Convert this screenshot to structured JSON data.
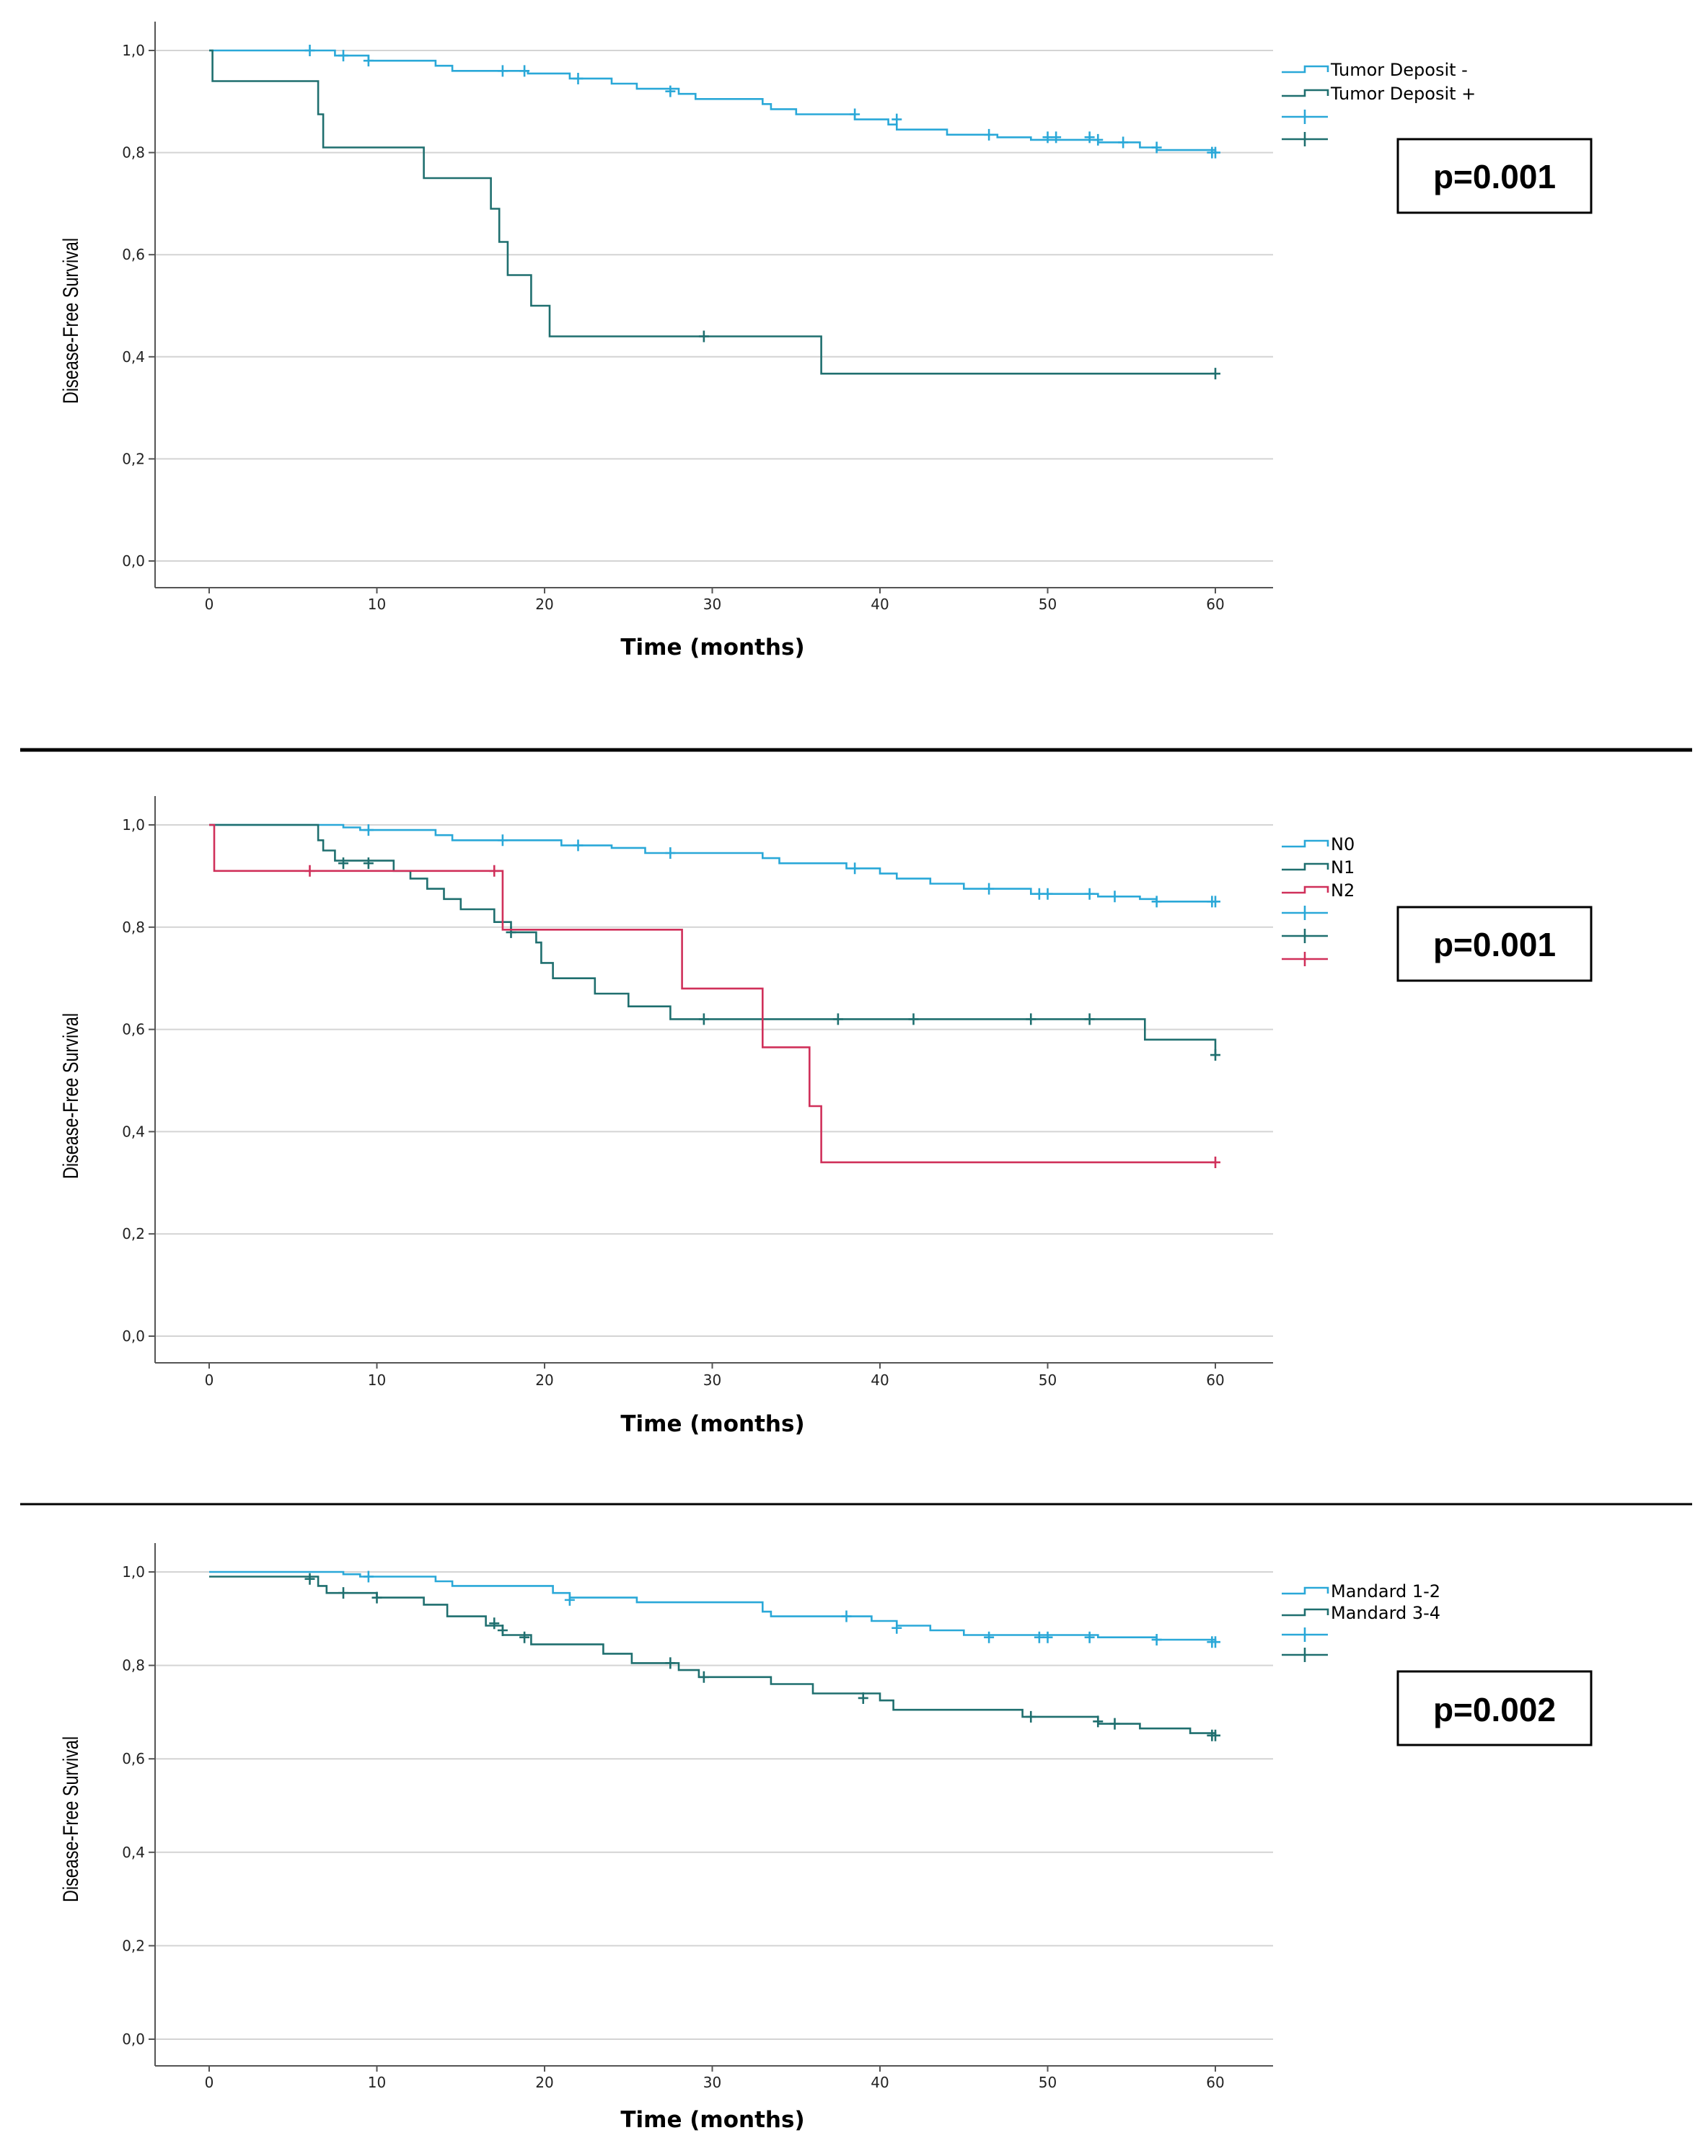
{
  "chart_data": [
    {
      "type": "line",
      "step": true,
      "title": "",
      "xlabel": "Time (months)",
      "ylabel": "Disease-Free Survival",
      "xlim": [
        0,
        60
      ],
      "ylim": [
        0,
        1
      ],
      "xticks": [
        "0",
        "10",
        "20",
        "30",
        "40",
        "50",
        "60"
      ],
      "yticks": [
        "0,0",
        "0,2",
        "0,4",
        "0,6",
        "0,8",
        "1,0"
      ],
      "grid": "horizontal",
      "annotation": "p=0.001",
      "legend": [
        "Tumor Deposit -",
        "Tumor Deposit +"
      ],
      "series": [
        {
          "name": "Tumor Deposit -",
          "color": "#2aa8d8",
          "points": [
            [
              0,
              1
            ],
            [
              6,
              1
            ],
            [
              7.5,
              0.99
            ],
            [
              9.5,
              0.98
            ],
            [
              13.5,
              0.97
            ],
            [
              14.5,
              0.96
            ],
            [
              19,
              0.955
            ],
            [
              21.5,
              0.945
            ],
            [
              24,
              0.935
            ],
            [
              25.5,
              0.925
            ],
            [
              28,
              0.915
            ],
            [
              29,
              0.905
            ],
            [
              33,
              0.895
            ],
            [
              33.5,
              0.885
            ],
            [
              35,
              0.875
            ],
            [
              38.5,
              0.865
            ],
            [
              40.5,
              0.855
            ],
            [
              41,
              0.845
            ],
            [
              44,
              0.835
            ],
            [
              47,
              0.83
            ],
            [
              49,
              0.825
            ],
            [
              53,
              0.82
            ],
            [
              55.5,
              0.81
            ],
            [
              56.5,
              0.805
            ],
            [
              60,
              0.8
            ]
          ],
          "censor": [
            [
              6,
              1
            ],
            [
              8,
              0.99
            ],
            [
              9.5,
              0.98
            ],
            [
              17.5,
              0.96
            ],
            [
              18.8,
              0.96
            ],
            [
              22,
              0.945
            ],
            [
              27.5,
              0.92
            ],
            [
              38.5,
              0.875
            ],
            [
              41,
              0.865
            ],
            [
              46.5,
              0.835
            ],
            [
              50,
              0.83
            ],
            [
              50.5,
              0.83
            ],
            [
              52.5,
              0.83
            ],
            [
              53,
              0.825
            ],
            [
              54.5,
              0.82
            ],
            [
              56.5,
              0.81
            ],
            [
              59.8,
              0.8
            ],
            [
              60,
              0.8
            ]
          ]
        },
        {
          "name": "Tumor Deposit +",
          "color": "#1f6f6f",
          "points": [
            [
              0,
              1
            ],
            [
              0.2,
              0.94
            ],
            [
              6.5,
              0.94
            ],
            [
              6.5,
              0.875
            ],
            [
              6.8,
              0.875
            ],
            [
              6.8,
              0.81
            ],
            [
              12.8,
              0.81
            ],
            [
              12.8,
              0.75
            ],
            [
              16.8,
              0.75
            ],
            [
              16.8,
              0.69
            ],
            [
              17.3,
              0.69
            ],
            [
              17.3,
              0.625
            ],
            [
              17.8,
              0.625
            ],
            [
              17.8,
              0.56
            ],
            [
              19.2,
              0.56
            ],
            [
              19.2,
              0.5
            ],
            [
              20.3,
              0.5
            ],
            [
              20.3,
              0.44
            ],
            [
              36.5,
              0.44
            ],
            [
              36.5,
              0.367
            ],
            [
              60,
              0.367
            ]
          ],
          "censor": [
            [
              29.5,
              0.44
            ],
            [
              60,
              0.367
            ]
          ]
        }
      ]
    },
    {
      "type": "line",
      "step": true,
      "title": "",
      "xlabel": "Time (months)",
      "ylabel": "Disease-Free Survival",
      "xlim": [
        0,
        60
      ],
      "ylim": [
        0,
        1
      ],
      "xticks": [
        "0",
        "10",
        "20",
        "30",
        "40",
        "50",
        "60"
      ],
      "yticks": [
        "0,0",
        "0,2",
        "0,4",
        "0,6",
        "0,8",
        "1,0"
      ],
      "grid": "horizontal",
      "annotation": "p=0.001",
      "legend": [
        "N0",
        "N1",
        "N2"
      ],
      "series": [
        {
          "name": "N0",
          "color": "#2aa8d8",
          "points": [
            [
              0,
              1
            ],
            [
              8,
              0.995
            ],
            [
              9,
              0.99
            ],
            [
              13.5,
              0.98
            ],
            [
              14.5,
              0.97
            ],
            [
              21,
              0.96
            ],
            [
              24,
              0.955
            ],
            [
              26,
              0.945
            ],
            [
              33,
              0.935
            ],
            [
              34,
              0.925
            ],
            [
              38,
              0.915
            ],
            [
              40,
              0.905
            ],
            [
              41,
              0.895
            ],
            [
              43,
              0.885
            ],
            [
              45,
              0.875
            ],
            [
              49,
              0.865
            ],
            [
              53,
              0.86
            ],
            [
              55.5,
              0.855
            ],
            [
              56.5,
              0.85
            ],
            [
              60,
              0.85
            ]
          ],
          "censor": [
            [
              9.5,
              0.99
            ],
            [
              17.5,
              0.97
            ],
            [
              22,
              0.96
            ],
            [
              27.5,
              0.945
            ],
            [
              38.5,
              0.915
            ],
            [
              46.5,
              0.875
            ],
            [
              49.5,
              0.865
            ],
            [
              50,
              0.865
            ],
            [
              52.5,
              0.865
            ],
            [
              54,
              0.86
            ],
            [
              56.5,
              0.85
            ],
            [
              59.8,
              0.85
            ],
            [
              60,
              0.85
            ]
          ]
        },
        {
          "name": "N1",
          "color": "#1f6f6f",
          "points": [
            [
              0,
              1
            ],
            [
              6.5,
              0.97
            ],
            [
              6.8,
              0.95
            ],
            [
              7.5,
              0.93
            ],
            [
              11,
              0.91
            ],
            [
              12,
              0.895
            ],
            [
              13,
              0.875
            ],
            [
              14,
              0.855
            ],
            [
              15,
              0.835
            ],
            [
              17,
              0.81
            ],
            [
              18,
              0.79
            ],
            [
              19.5,
              0.77
            ],
            [
              19.8,
              0.73
            ],
            [
              20.5,
              0.7
            ],
            [
              23,
              0.67
            ],
            [
              25,
              0.645
            ],
            [
              27.5,
              0.62
            ],
            [
              55.8,
              0.62
            ],
            [
              55.8,
              0.58
            ],
            [
              60,
              0.55
            ]
          ],
          "censor": [
            [
              8,
              0.925
            ],
            [
              9.5,
              0.925
            ],
            [
              18,
              0.79
            ],
            [
              29.5,
              0.62
            ],
            [
              37.5,
              0.62
            ],
            [
              42,
              0.62
            ],
            [
              49,
              0.62
            ],
            [
              52.5,
              0.62
            ],
            [
              60,
              0.55
            ]
          ]
        },
        {
          "name": "N2",
          "color": "#d0305a",
          "points": [
            [
              0,
              1
            ],
            [
              0.3,
              0.91
            ],
            [
              17.5,
              0.91
            ],
            [
              17.5,
              0.795
            ],
            [
              28.2,
              0.795
            ],
            [
              28.2,
              0.68
            ],
            [
              33,
              0.68
            ],
            [
              33,
              0.565
            ],
            [
              35.8,
              0.565
            ],
            [
              35.8,
              0.45
            ],
            [
              36.5,
              0.45
            ],
            [
              36.5,
              0.34
            ],
            [
              60,
              0.34
            ]
          ],
          "censor": [
            [
              6,
              0.91
            ],
            [
              17,
              0.91
            ],
            [
              60,
              0.34
            ]
          ]
        }
      ]
    },
    {
      "type": "line",
      "step": true,
      "title": "",
      "xlabel": "Time (months)",
      "ylabel": "Disease-Free Survival",
      "xlim": [
        0,
        60
      ],
      "ylim": [
        0,
        1
      ],
      "xticks": [
        "0",
        "10",
        "20",
        "30",
        "40",
        "50",
        "60"
      ],
      "yticks": [
        "0,0",
        "0,2",
        "0,4",
        "0,6",
        "0,8",
        "1,0"
      ],
      "grid": "horizontal",
      "annotation": "p=0.002",
      "legend": [
        "Mandard 1-2",
        "Mandard 3-4"
      ],
      "series": [
        {
          "name": "Mandard 1-2",
          "color": "#2aa8d8",
          "points": [
            [
              0,
              1
            ],
            [
              8,
              0.995
            ],
            [
              9,
              0.99
            ],
            [
              13.5,
              0.98
            ],
            [
              14.5,
              0.97
            ],
            [
              20.5,
              0.955
            ],
            [
              21.5,
              0.945
            ],
            [
              25.5,
              0.935
            ],
            [
              33,
              0.915
            ],
            [
              33.5,
              0.905
            ],
            [
              39.5,
              0.895
            ],
            [
              41,
              0.885
            ],
            [
              43,
              0.875
            ],
            [
              45,
              0.865
            ],
            [
              53,
              0.86
            ],
            [
              56.5,
              0.855
            ],
            [
              60,
              0.85
            ]
          ],
          "censor": [
            [
              9.5,
              0.99
            ],
            [
              21.5,
              0.94
            ],
            [
              38,
              0.905
            ],
            [
              41,
              0.88
            ],
            [
              46.5,
              0.86
            ],
            [
              49.5,
              0.86
            ],
            [
              50,
              0.86
            ],
            [
              52.5,
              0.86
            ],
            [
              56.5,
              0.855
            ],
            [
              59.8,
              0.85
            ],
            [
              60,
              0.85
            ]
          ]
        },
        {
          "name": "Mandard 3-4",
          "color": "#1f6f6f",
          "points": [
            [
              0,
              0.99
            ],
            [
              5.8,
              0.99
            ],
            [
              6.5,
              0.97
            ],
            [
              7,
              0.955
            ],
            [
              10,
              0.945
            ],
            [
              12.8,
              0.93
            ],
            [
              14.2,
              0.905
            ],
            [
              16.5,
              0.885
            ],
            [
              17.5,
              0.865
            ],
            [
              19.2,
              0.845
            ],
            [
              23.5,
              0.825
            ],
            [
              25.2,
              0.805
            ],
            [
              28,
              0.79
            ],
            [
              29.2,
              0.775
            ],
            [
              33.5,
              0.76
            ],
            [
              36,
              0.74
            ],
            [
              40,
              0.725
            ],
            [
              40.8,
              0.705
            ],
            [
              48.5,
              0.69
            ],
            [
              53,
              0.675
            ],
            [
              55.5,
              0.665
            ],
            [
              58.5,
              0.655
            ],
            [
              60,
              0.65
            ]
          ],
          "censor": [
            [
              6,
              0.985
            ],
            [
              8,
              0.955
            ],
            [
              10,
              0.945
            ],
            [
              17,
              0.89
            ],
            [
              17.5,
              0.875
            ],
            [
              18.8,
              0.86
            ],
            [
              27.5,
              0.805
            ],
            [
              29.5,
              0.775
            ],
            [
              39,
              0.73
            ],
            [
              49,
              0.69
            ],
            [
              53,
              0.68
            ],
            [
              54,
              0.675
            ],
            [
              59.8,
              0.65
            ],
            [
              60,
              0.65
            ]
          ]
        }
      ]
    }
  ]
}
